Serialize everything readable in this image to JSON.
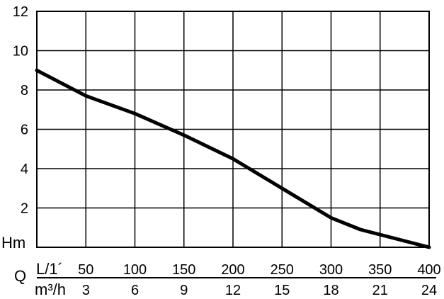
{
  "chart_data": {
    "type": "line",
    "ylabel": "Hm",
    "ylim": [
      0,
      12
    ],
    "yticks": [
      2,
      4,
      6,
      8,
      10,
      12
    ],
    "xlim": [
      0,
      400
    ],
    "grid": true,
    "x_axis_prefix": "Q",
    "x_primary_unit": "L/1´",
    "x_primary_ticks": [
      50,
      100,
      150,
      200,
      250,
      300,
      350,
      400
    ],
    "x_secondary_unit": "m³/h",
    "x_secondary_ticks": [
      3,
      6,
      9,
      12,
      15,
      18,
      21,
      24
    ],
    "series": [
      {
        "x": [
          0,
          50,
          100,
          150,
          200,
          250,
          300,
          330,
          400
        ],
        "y": [
          9.0,
          7.7,
          6.8,
          5.7,
          4.5,
          3.0,
          1.5,
          0.9,
          0.0
        ]
      }
    ]
  }
}
